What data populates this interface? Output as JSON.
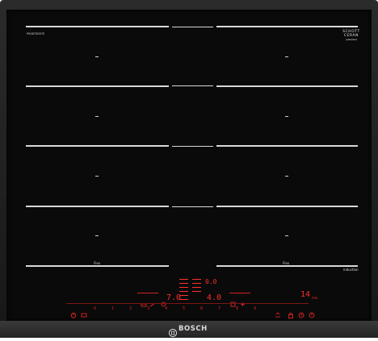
{
  "device": {
    "model_label": "PXX875D57E",
    "brand": "BOSCH",
    "badge_top": "SCHOTT",
    "badge_bottom": "CERAN",
    "badge_sub": "patented",
    "induction_label": "induction",
    "flex_label_left": "Flex",
    "flex_label_right": "Flex"
  },
  "zones": {
    "left": [
      "–",
      "–",
      "–",
      "–"
    ],
    "right": [
      "–",
      "–",
      "–",
      "–"
    ]
  },
  "display": {
    "stack_value": "0.0",
    "left_value": "7.0",
    "center_value": "4.0",
    "timer_value": "14",
    "timer_unit": "min"
  },
  "level_scale": [
    "0",
    "1",
    "2",
    "3",
    "4",
    "5",
    "6",
    "7",
    "8",
    "9"
  ],
  "colors": {
    "glass": "#0a0a0a",
    "frame": "#222222",
    "zone_line": "#d8d8d8",
    "display_red": "#ff2a2a"
  },
  "icons": {
    "power": "power-icon",
    "pan": "pan-icon",
    "lock": "lock-icon",
    "timer": "timer-icon",
    "fry": "fry-sensor-icon",
    "move": "move-icon",
    "flex": "flex-icon"
  }
}
